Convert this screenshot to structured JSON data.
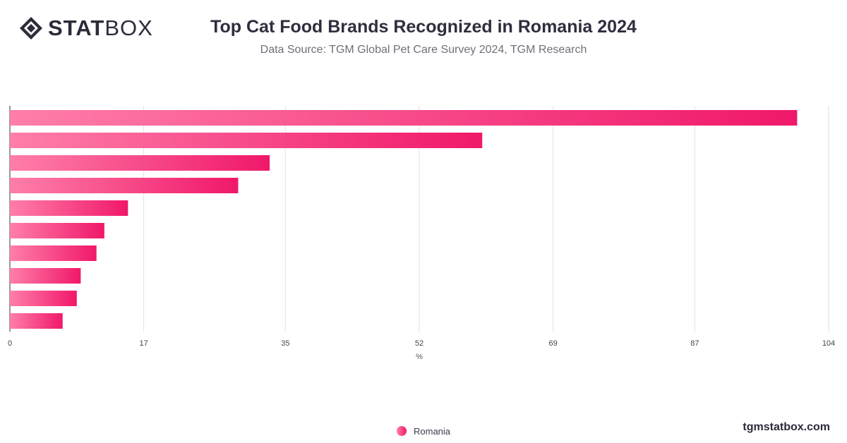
{
  "header": {
    "logo_bold": "STAT",
    "logo_light": "BOX",
    "title": "Top Cat Food Brands Recognized in Romania 2024",
    "subtitle": "Data Source: TGM Global Pet Care Survey 2024, TGM Research"
  },
  "footer": {
    "site": "tgmstatbox.com"
  },
  "legend": {
    "label": "Romania"
  },
  "icons": {
    "logo": "statbox-diamond-logo-icon",
    "legend_marker": "circle-icon"
  },
  "colors": {
    "bar_start": "#ff7eaa",
    "bar_end": "#f0186a",
    "grid": "#e2e2e2",
    "text": "#2b2b3a"
  },
  "chart_data": {
    "type": "bar",
    "orientation": "horizontal",
    "categories": [
      "",
      "",
      "",
      "",
      "",
      "",
      "",
      "",
      "",
      ""
    ],
    "series": [
      {
        "name": "Romania",
        "values": [
          100,
          60,
          33,
          29,
          15,
          12,
          11,
          9,
          8.5,
          6.7
        ]
      }
    ],
    "xlabel": "%",
    "xlim": [
      0,
      104
    ],
    "xticks": [
      0,
      17,
      35,
      52,
      69,
      87,
      104
    ],
    "grid": true,
    "legend_position": "bottom"
  }
}
